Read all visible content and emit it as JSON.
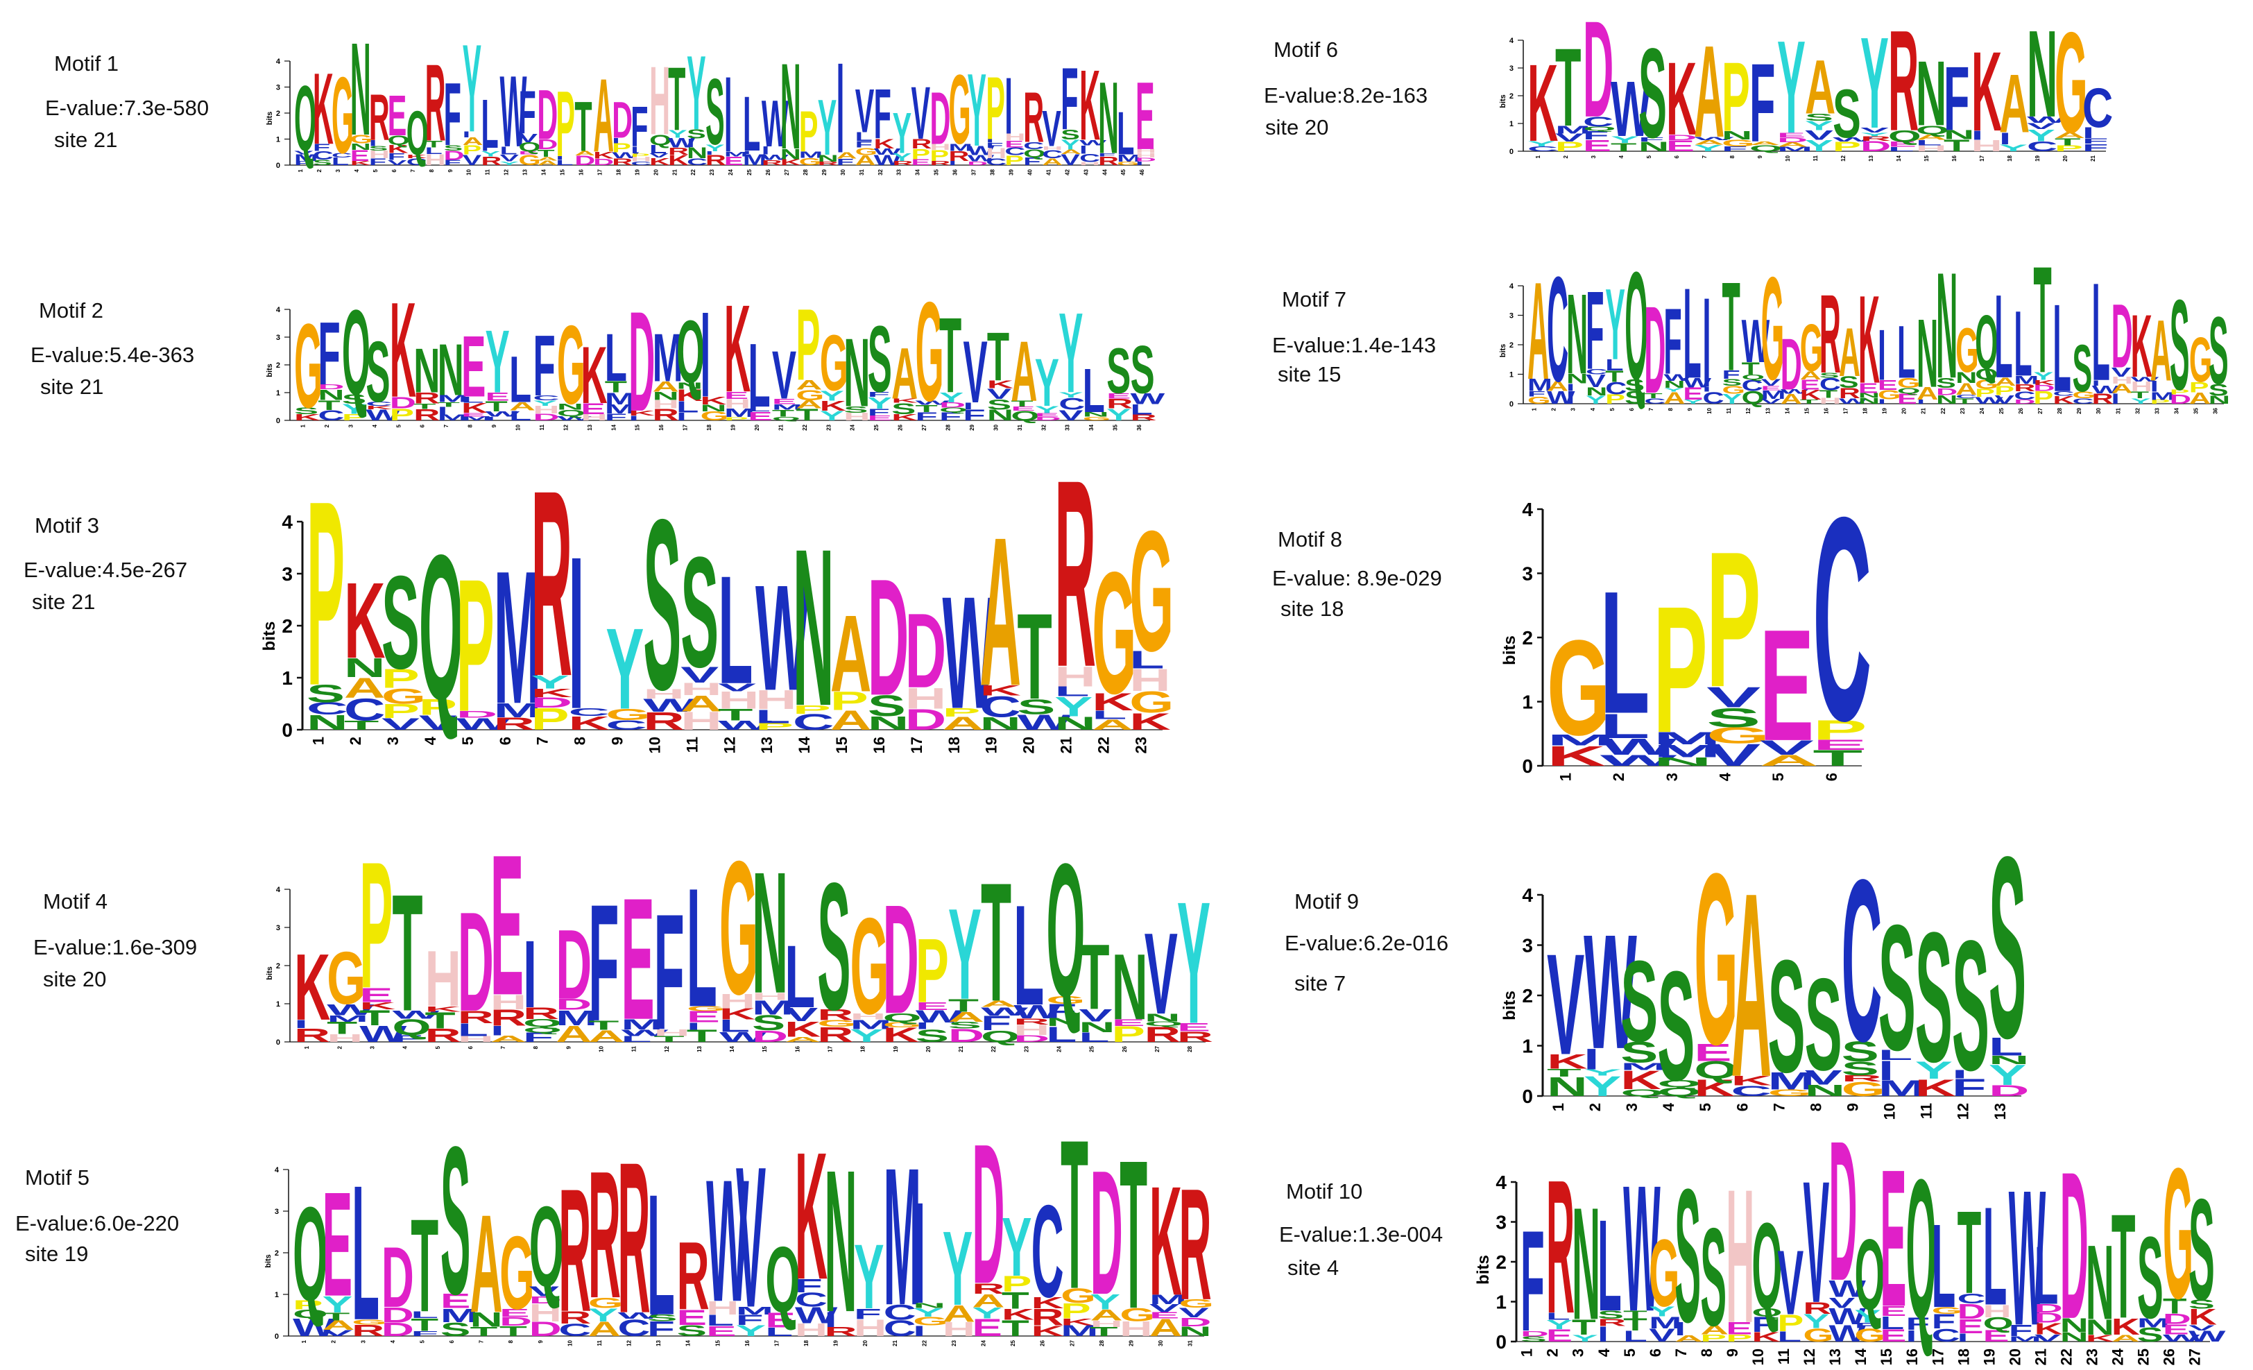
{
  "axis_label": "bits",
  "colors": {
    "A": "#e8a000",
    "C": "#1a2fbf",
    "D": "#e020c8",
    "E": "#e020c8",
    "F": "#1a2fbf",
    "G": "#f5a300",
    "H": "#f2c6c6",
    "I": "#1a2fbf",
    "K": "#d01515",
    "L": "#1a2fbf",
    "M": "#1a2fbf",
    "N": "#1a8a1a",
    "P": "#f0e800",
    "Q": "#1a8a1a",
    "R": "#d01515",
    "S": "#1a8a1a",
    "T": "#1a8a1a",
    "V": "#1a2fbf",
    "W": "#1a2fbf",
    "Y": "#2ad6d6"
  },
  "motifs": [
    {
      "name": "Motif 1",
      "evalue": "E-value:7.3e-580",
      "site": "site 21",
      "consensus": "QKGNREQRFYLWFDPTADFHTYSILWNPYIVFYVDGYPIRVFKNLE",
      "height": 46
    },
    {
      "name": "Motif 2",
      "evalue": "E-value:5.4e-363",
      "site": "site 21",
      "consensus": "GFQSKNNEYLFGKLDMQIKLVPGNSAGTVTAYYLSS",
      "height": 40
    },
    {
      "name": "Motif 3",
      "evalue": "E-value:4.5e-267",
      "site": "site 21",
      "consensus": "PKSQPMRIYSSLWNADDWATRGG",
      "height": 4
    },
    {
      "name": "Motif 4",
      "evalue": "E-value:1.6e-309",
      "site": "site 20",
      "consensus": "KGPTHDEIDFEFLGNLSGDPYTLQTNVY",
      "height": 29
    },
    {
      "name": "Motif 5",
      "evalue": "E-value:6.0e-220",
      "site": "site 19",
      "consensus": "QELDTSAGQRRRLRWVQKNYMIYDYCTDTKRFP",
      "height": 31
    },
    {
      "name": "Motif 6",
      "evalue": "E-value:8.2e-163",
      "site": "site 20",
      "consensus": "KTDWSKAPFYASYRNFKANGC",
      "height": 21
    },
    {
      "name": "Motif 7",
      "evalue": "E-value:1.4e-143",
      "site": "site 15",
      "consensus": "ACNFYQDFLITWGDGRAKILNNGQLLTLSLDKASGS",
      "height": 36
    },
    {
      "name": "Motif 8",
      "evalue": "E-value: 8.9e-029",
      "site": "site 18",
      "consensus": "GLPPEC",
      "height": 6
    },
    {
      "name": "Motif 9",
      "evalue": "E-value:6.2e-016",
      "site": "site 7",
      "consensus": "VWSSGASSCSSSS",
      "height": 13
    },
    {
      "name": "Motif 10",
      "evalue": "E-value:1.3e-004",
      "site": "site 4",
      "consensus": "FRNLWGSSHQVVDQEQLTLWLDNTSGS",
      "height": 27
    }
  ],
  "motif3_ticks": [
    "0",
    "1",
    "2",
    "3",
    "4"
  ],
  "motif8_ticks": [
    "0",
    "1",
    "2",
    "3",
    "4"
  ],
  "motif9_ticks": [
    "0",
    "1",
    "2",
    "3",
    "4"
  ]
}
